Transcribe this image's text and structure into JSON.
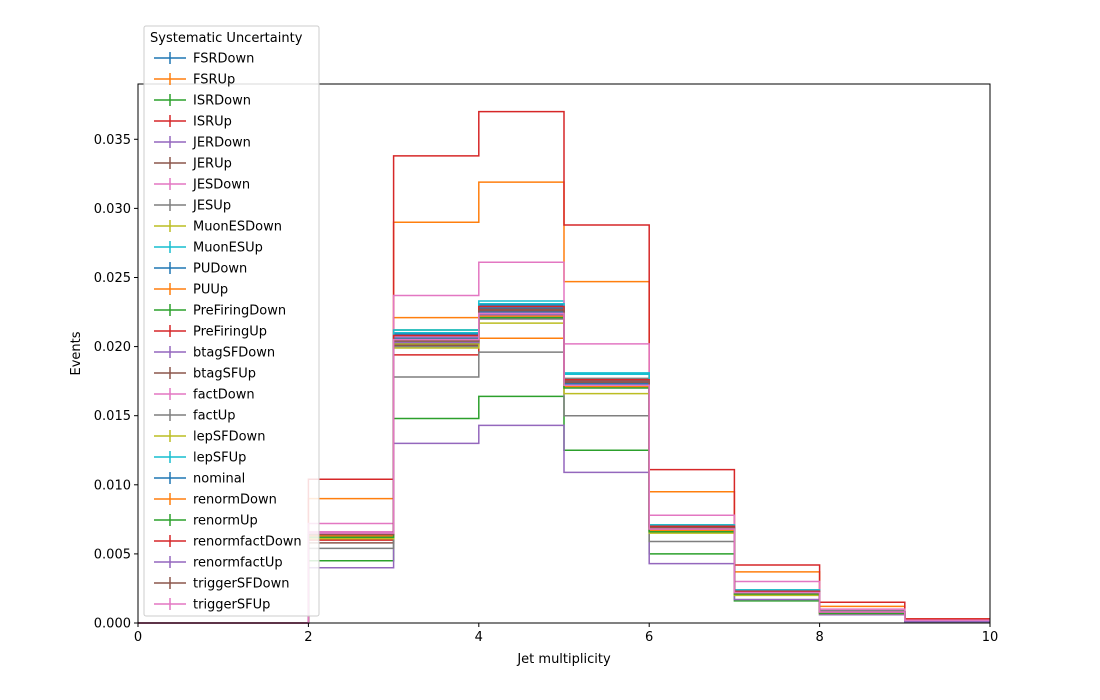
{
  "chart_data": {
    "type": "line",
    "style": "step-histogram",
    "xlabel": "Jet multiplicity",
    "ylabel": "Events",
    "xlim": [
      0,
      10
    ],
    "ylim": [
      0,
      0.039
    ],
    "x_ticks": [
      "0",
      "2",
      "4",
      "6",
      "8",
      "10"
    ],
    "y_ticks": [
      "0.000",
      "0.005",
      "0.010",
      "0.015",
      "0.020",
      "0.025",
      "0.030",
      "0.035"
    ],
    "grid": false,
    "legend": {
      "title": "Systematic Uncertainty",
      "placement": "upper-left"
    },
    "bin_edges": [
      0,
      1,
      2,
      3,
      4,
      5,
      6,
      7,
      8,
      9,
      10
    ],
    "series": [
      {
        "name": "FSRDown",
        "color": "#1f77b4",
        "values": [
          0,
          0,
          0.0063,
          0.0209,
          0.0228,
          0.0175,
          0.0069,
          0.0022,
          0.0008,
          0.0002
        ]
      },
      {
        "name": "FSRUp",
        "color": "#ff7f0e",
        "values": [
          0,
          0,
          0.009,
          0.029,
          0.0319,
          0.0247,
          0.0095,
          0.0037,
          0.0012,
          0.0003
        ]
      },
      {
        "name": "ISRDown",
        "color": "#2ca02c",
        "values": [
          0,
          0,
          0.0061,
          0.0212,
          0.0226,
          0.0172,
          0.0068,
          0.0021,
          0.0007,
          0.0002
        ]
      },
      {
        "name": "ISRUp",
        "color": "#d62728",
        "values": [
          0,
          0,
          0.006,
          0.0194,
          0.0221,
          0.0173,
          0.0067,
          0.0022,
          0.0008,
          0.0002
        ]
      },
      {
        "name": "JERDown",
        "color": "#9467bd",
        "values": [
          0,
          0,
          0.0063,
          0.0204,
          0.0224,
          0.0173,
          0.0068,
          0.0022,
          0.0008,
          0.0002
        ]
      },
      {
        "name": "JERUp",
        "color": "#8c564b",
        "values": [
          0,
          0,
          0.0064,
          0.0202,
          0.0226,
          0.0176,
          0.0069,
          0.0023,
          0.0008,
          0.0002
        ]
      },
      {
        "name": "JESDown",
        "color": "#e377c2",
        "values": [
          0,
          0,
          0.0066,
          0.0207,
          0.0225,
          0.0171,
          0.0066,
          0.0021,
          0.0007,
          0.0002
        ]
      },
      {
        "name": "JESUp",
        "color": "#7f7f7f",
        "values": [
          0,
          0,
          0.0061,
          0.02,
          0.022,
          0.0177,
          0.0071,
          0.0024,
          0.0009,
          0.0002
        ]
      },
      {
        "name": "MuonESDown",
        "color": "#bcbd22",
        "values": [
          0,
          0,
          0.0062,
          0.0202,
          0.0223,
          0.0174,
          0.0068,
          0.0022,
          0.0008,
          0.0002
        ]
      },
      {
        "name": "MuonESUp",
        "color": "#17becf",
        "values": [
          0,
          0,
          0.0062,
          0.021,
          0.0233,
          0.018,
          0.007,
          0.0023,
          0.0008,
          0.0002
        ]
      },
      {
        "name": "PUDown",
        "color": "#1f77b4",
        "values": [
          0,
          0,
          0.0063,
          0.0208,
          0.023,
          0.0176,
          0.007,
          0.0023,
          0.0008,
          0.0002
        ]
      },
      {
        "name": "PUUp",
        "color": "#ff7f0e",
        "values": [
          0,
          0,
          0.0061,
          0.0221,
          0.0206,
          0.0172,
          0.0066,
          0.0021,
          0.0007,
          0.0002
        ]
      },
      {
        "name": "PreFiringDown",
        "color": "#2ca02c",
        "values": [
          0,
          0,
          0.0045,
          0.0148,
          0.0164,
          0.0125,
          0.005,
          0.0016,
          0.0006,
          0.0001
        ]
      },
      {
        "name": "PreFiringUp",
        "color": "#d62728",
        "values": [
          0,
          0,
          0.0104,
          0.0338,
          0.037,
          0.0288,
          0.0111,
          0.0042,
          0.0015,
          0.0003
        ]
      },
      {
        "name": "btagSFDown",
        "color": "#9467bd",
        "values": [
          0,
          0,
          0.004,
          0.013,
          0.0143,
          0.0109,
          0.0043,
          0.0017,
          0.0006,
          0.0001
        ]
      },
      {
        "name": "btagSFUp",
        "color": "#8c564b",
        "values": [
          0,
          0,
          0.0058,
          0.0201,
          0.0227,
          0.0174,
          0.0067,
          0.0023,
          0.0008,
          0.0002
        ]
      },
      {
        "name": "factDown",
        "color": "#e377c2",
        "values": [
          0,
          0,
          0.0072,
          0.0237,
          0.0261,
          0.0202,
          0.0078,
          0.003,
          0.001,
          0.0002
        ]
      },
      {
        "name": "factUp",
        "color": "#7f7f7f",
        "values": [
          0,
          0,
          0.0054,
          0.0178,
          0.0196,
          0.015,
          0.0059,
          0.0022,
          0.0008,
          0.0002
        ]
      },
      {
        "name": "lepSFDown",
        "color": "#bcbd22",
        "values": [
          0,
          0,
          0.0061,
          0.0199,
          0.0217,
          0.0166,
          0.0065,
          0.002,
          0.0007,
          0.0002
        ]
      },
      {
        "name": "lepSFUp",
        "color": "#17becf",
        "values": [
          0,
          0,
          0.0064,
          0.0212,
          0.0231,
          0.0181,
          0.0071,
          0.0024,
          0.0008,
          0.0002
        ]
      },
      {
        "name": "nominal",
        "color": "#1f77b4",
        "values": [
          0,
          0,
          0.0063,
          0.0206,
          0.0225,
          0.0173,
          0.0069,
          0.0022,
          0.0008,
          0.0002
        ]
      },
      {
        "name": "renormDown",
        "color": "#ff7f0e",
        "values": [
          0,
          0,
          0.0063,
          0.0205,
          0.0222,
          0.0171,
          0.0067,
          0.0021,
          0.0007,
          0.0002
        ]
      },
      {
        "name": "renormUp",
        "color": "#2ca02c",
        "values": [
          0,
          0,
          0.0062,
          0.0203,
          0.0221,
          0.017,
          0.0066,
          0.0021,
          0.0007,
          0.0002
        ]
      },
      {
        "name": "renormfactDown",
        "color": "#d62728",
        "values": [
          0,
          0,
          0.0064,
          0.0208,
          0.0229,
          0.0176,
          0.007,
          0.0023,
          0.0008,
          0.0002
        ]
      },
      {
        "name": "renormfactUp",
        "color": "#9467bd",
        "values": [
          0,
          0,
          0.0065,
          0.0203,
          0.0223,
          0.0175,
          0.0068,
          0.0022,
          0.0008,
          0.0002
        ]
      },
      {
        "name": "triggerSFDown",
        "color": "#8c564b",
        "values": [
          0,
          0,
          0.0064,
          0.0204,
          0.0226,
          0.0175,
          0.0069,
          0.0022,
          0.0008,
          0.0002
        ]
      },
      {
        "name": "triggerSFUp",
        "color": "#e377c2",
        "values": [
          0,
          0,
          0.0065,
          0.0205,
          0.0224,
          0.0172,
          0.0068,
          0.0022,
          0.0008,
          0.0002
        ]
      }
    ]
  }
}
